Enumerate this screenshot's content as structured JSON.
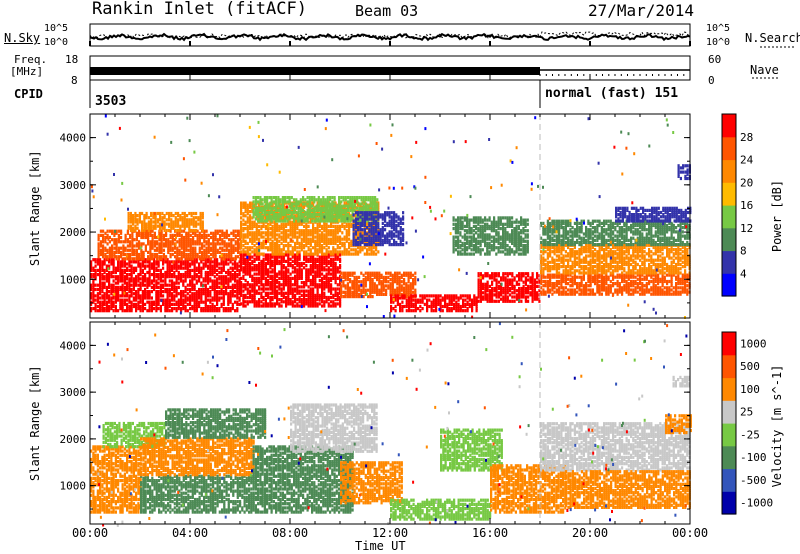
{
  "header": {
    "title": "Rankin Inlet (fitACF)",
    "beam": "Beam 03",
    "date": "27/Mar/2014"
  },
  "noise_panel": {
    "left_label": "N.Sky",
    "right_label": "N.Search",
    "left_ticks": [
      "10^5",
      "10^0"
    ],
    "right_ticks": [
      "10^5",
      "10^0"
    ]
  },
  "freq_panel": {
    "label_line1": "Freq.",
    "label_line2": "[MHz]",
    "left_ticks": [
      "18",
      "8"
    ],
    "right_label": "Nave",
    "right_ticks": [
      "60",
      "0"
    ]
  },
  "cpid": {
    "label": "CPID",
    "segments": [
      {
        "text": "3503"
      },
      {
        "text": "normal (fast) 151"
      }
    ]
  },
  "x_axis": {
    "label": "Time UT",
    "ticks": [
      "00:00",
      "04:00",
      "08:00",
      "12:00",
      "16:00",
      "20:00",
      "00:00"
    ]
  },
  "chart_data": [
    {
      "type": "heatmap",
      "name": "power",
      "ylabel": "Slant Range [km]",
      "xlabel": "Time UT",
      "x_range_hours": [
        0,
        24
      ],
      "ylim": [
        180,
        4500
      ],
      "y_ticks": [
        "1000",
        "2000",
        "3000",
        "4000"
      ],
      "colorbar": {
        "label": "Power [dB]",
        "range": [
          0,
          32
        ],
        "ticks": [
          "4",
          "8",
          "12",
          "16",
          "20",
          "24",
          "28"
        ],
        "colors": [
          "#0000ff",
          "#3333aa",
          "#4d8a55",
          "#77c944",
          "#ffbb00",
          "#ff8800",
          "#ff5500",
          "#ff0000"
        ]
      },
      "bands": [
        {
          "t0": 0.0,
          "t1": 6.0,
          "r0": 300,
          "r1": 1400,
          "color": "#ff0000"
        },
        {
          "t0": 0.3,
          "t1": 6.0,
          "r0": 1400,
          "r1": 2000,
          "color": "#ff5500"
        },
        {
          "t0": 1.5,
          "t1": 4.5,
          "r0": 2000,
          "r1": 2400,
          "color": "#ff8800"
        },
        {
          "t0": 6.0,
          "t1": 10.0,
          "r0": 400,
          "r1": 1500,
          "color": "#ff0000"
        },
        {
          "t0": 6.0,
          "t1": 11.5,
          "r0": 1500,
          "r1": 2600,
          "color": "#ff8800"
        },
        {
          "t0": 6.5,
          "t1": 11.5,
          "r0": 2200,
          "r1": 2700,
          "color": "#77c944"
        },
        {
          "t0": 10.0,
          "t1": 13.0,
          "r0": 600,
          "r1": 1100,
          "color": "#ff5500"
        },
        {
          "t0": 10.5,
          "t1": 12.5,
          "r0": 1700,
          "r1": 2400,
          "color": "#3333aa"
        },
        {
          "t0": 12.0,
          "t1": 15.5,
          "r0": 300,
          "r1": 650,
          "color": "#ff0000"
        },
        {
          "t0": 14.5,
          "t1": 17.5,
          "r0": 1500,
          "r1": 2300,
          "color": "#4d8a55"
        },
        {
          "t0": 15.5,
          "t1": 18.0,
          "r0": 500,
          "r1": 1100,
          "color": "#ff0000"
        },
        {
          "t0": 18.0,
          "t1": 24.0,
          "r0": 650,
          "r1": 1100,
          "color": "#ff5500"
        },
        {
          "t0": 18.0,
          "t1": 24.0,
          "r0": 1100,
          "r1": 1700,
          "color": "#ff8800"
        },
        {
          "t0": 18.0,
          "t1": 24.0,
          "r0": 1700,
          "r1": 2200,
          "color": "#4d8a55"
        },
        {
          "t0": 21.0,
          "t1": 24.0,
          "r0": 2200,
          "r1": 2500,
          "color": "#3333aa"
        },
        {
          "t0": 23.5,
          "t1": 24.0,
          "r0": 3100,
          "r1": 3400,
          "color": "#3333aa"
        }
      ]
    },
    {
      "type": "heatmap",
      "name": "velocity",
      "ylabel": "Slant Range [km]",
      "xlabel": "Time UT",
      "x_range_hours": [
        0,
        24
      ],
      "ylim": [
        180,
        4500
      ],
      "y_ticks": [
        "1000",
        "2000",
        "3000",
        "4000"
      ],
      "colorbar": {
        "label": "Velocity [m s^-1]",
        "ticks": [
          "1000",
          "500",
          "100",
          "25",
          "-25",
          "-100",
          "-500",
          "-1000"
        ],
        "colors": [
          "#0000aa",
          "#3355bb",
          "#4d8a55",
          "#77c944",
          "#c8c8c8",
          "#ff8800",
          "#ff5500",
          "#ff0000"
        ]
      },
      "bands": [
        {
          "t0": 0.0,
          "t1": 2.0,
          "r0": 400,
          "r1": 1800,
          "color": "#ff8800"
        },
        {
          "t0": 0.5,
          "t1": 3.0,
          "r0": 1800,
          "r1": 2300,
          "color": "#77c944"
        },
        {
          "t0": 2.0,
          "t1": 6.5,
          "r0": 400,
          "r1": 1200,
          "color": "#4d8a55"
        },
        {
          "t0": 2.0,
          "t1": 6.5,
          "r0": 1200,
          "r1": 2000,
          "color": "#ff8800"
        },
        {
          "t0": 3.0,
          "t1": 7.0,
          "r0": 2000,
          "r1": 2600,
          "color": "#4d8a55"
        },
        {
          "t0": 6.5,
          "t1": 10.5,
          "r0": 400,
          "r1": 1800,
          "color": "#4d8a55"
        },
        {
          "t0": 8.0,
          "t1": 11.5,
          "r0": 1700,
          "r1": 2700,
          "color": "#c8c8c8"
        },
        {
          "t0": 10.0,
          "t1": 12.5,
          "r0": 600,
          "r1": 1500,
          "color": "#ff8800"
        },
        {
          "t0": 12.0,
          "t1": 16.0,
          "r0": 250,
          "r1": 700,
          "color": "#77c944"
        },
        {
          "t0": 14.0,
          "t1": 16.5,
          "r0": 1300,
          "r1": 2200,
          "color": "#77c944"
        },
        {
          "t0": 16.0,
          "t1": 19.0,
          "r0": 400,
          "r1": 1400,
          "color": "#ff8800"
        },
        {
          "t0": 18.0,
          "t1": 24.0,
          "r0": 1300,
          "r1": 2300,
          "color": "#c8c8c8"
        },
        {
          "t0": 19.0,
          "t1": 24.0,
          "r0": 500,
          "r1": 1300,
          "color": "#ff8800"
        },
        {
          "t0": 23.0,
          "t1": 24.0,
          "r0": 2100,
          "r1": 2500,
          "color": "#ff8800"
        },
        {
          "t0": 23.3,
          "t1": 24.0,
          "r0": 3100,
          "r1": 3300,
          "color": "#c8c8c8"
        }
      ]
    }
  ]
}
